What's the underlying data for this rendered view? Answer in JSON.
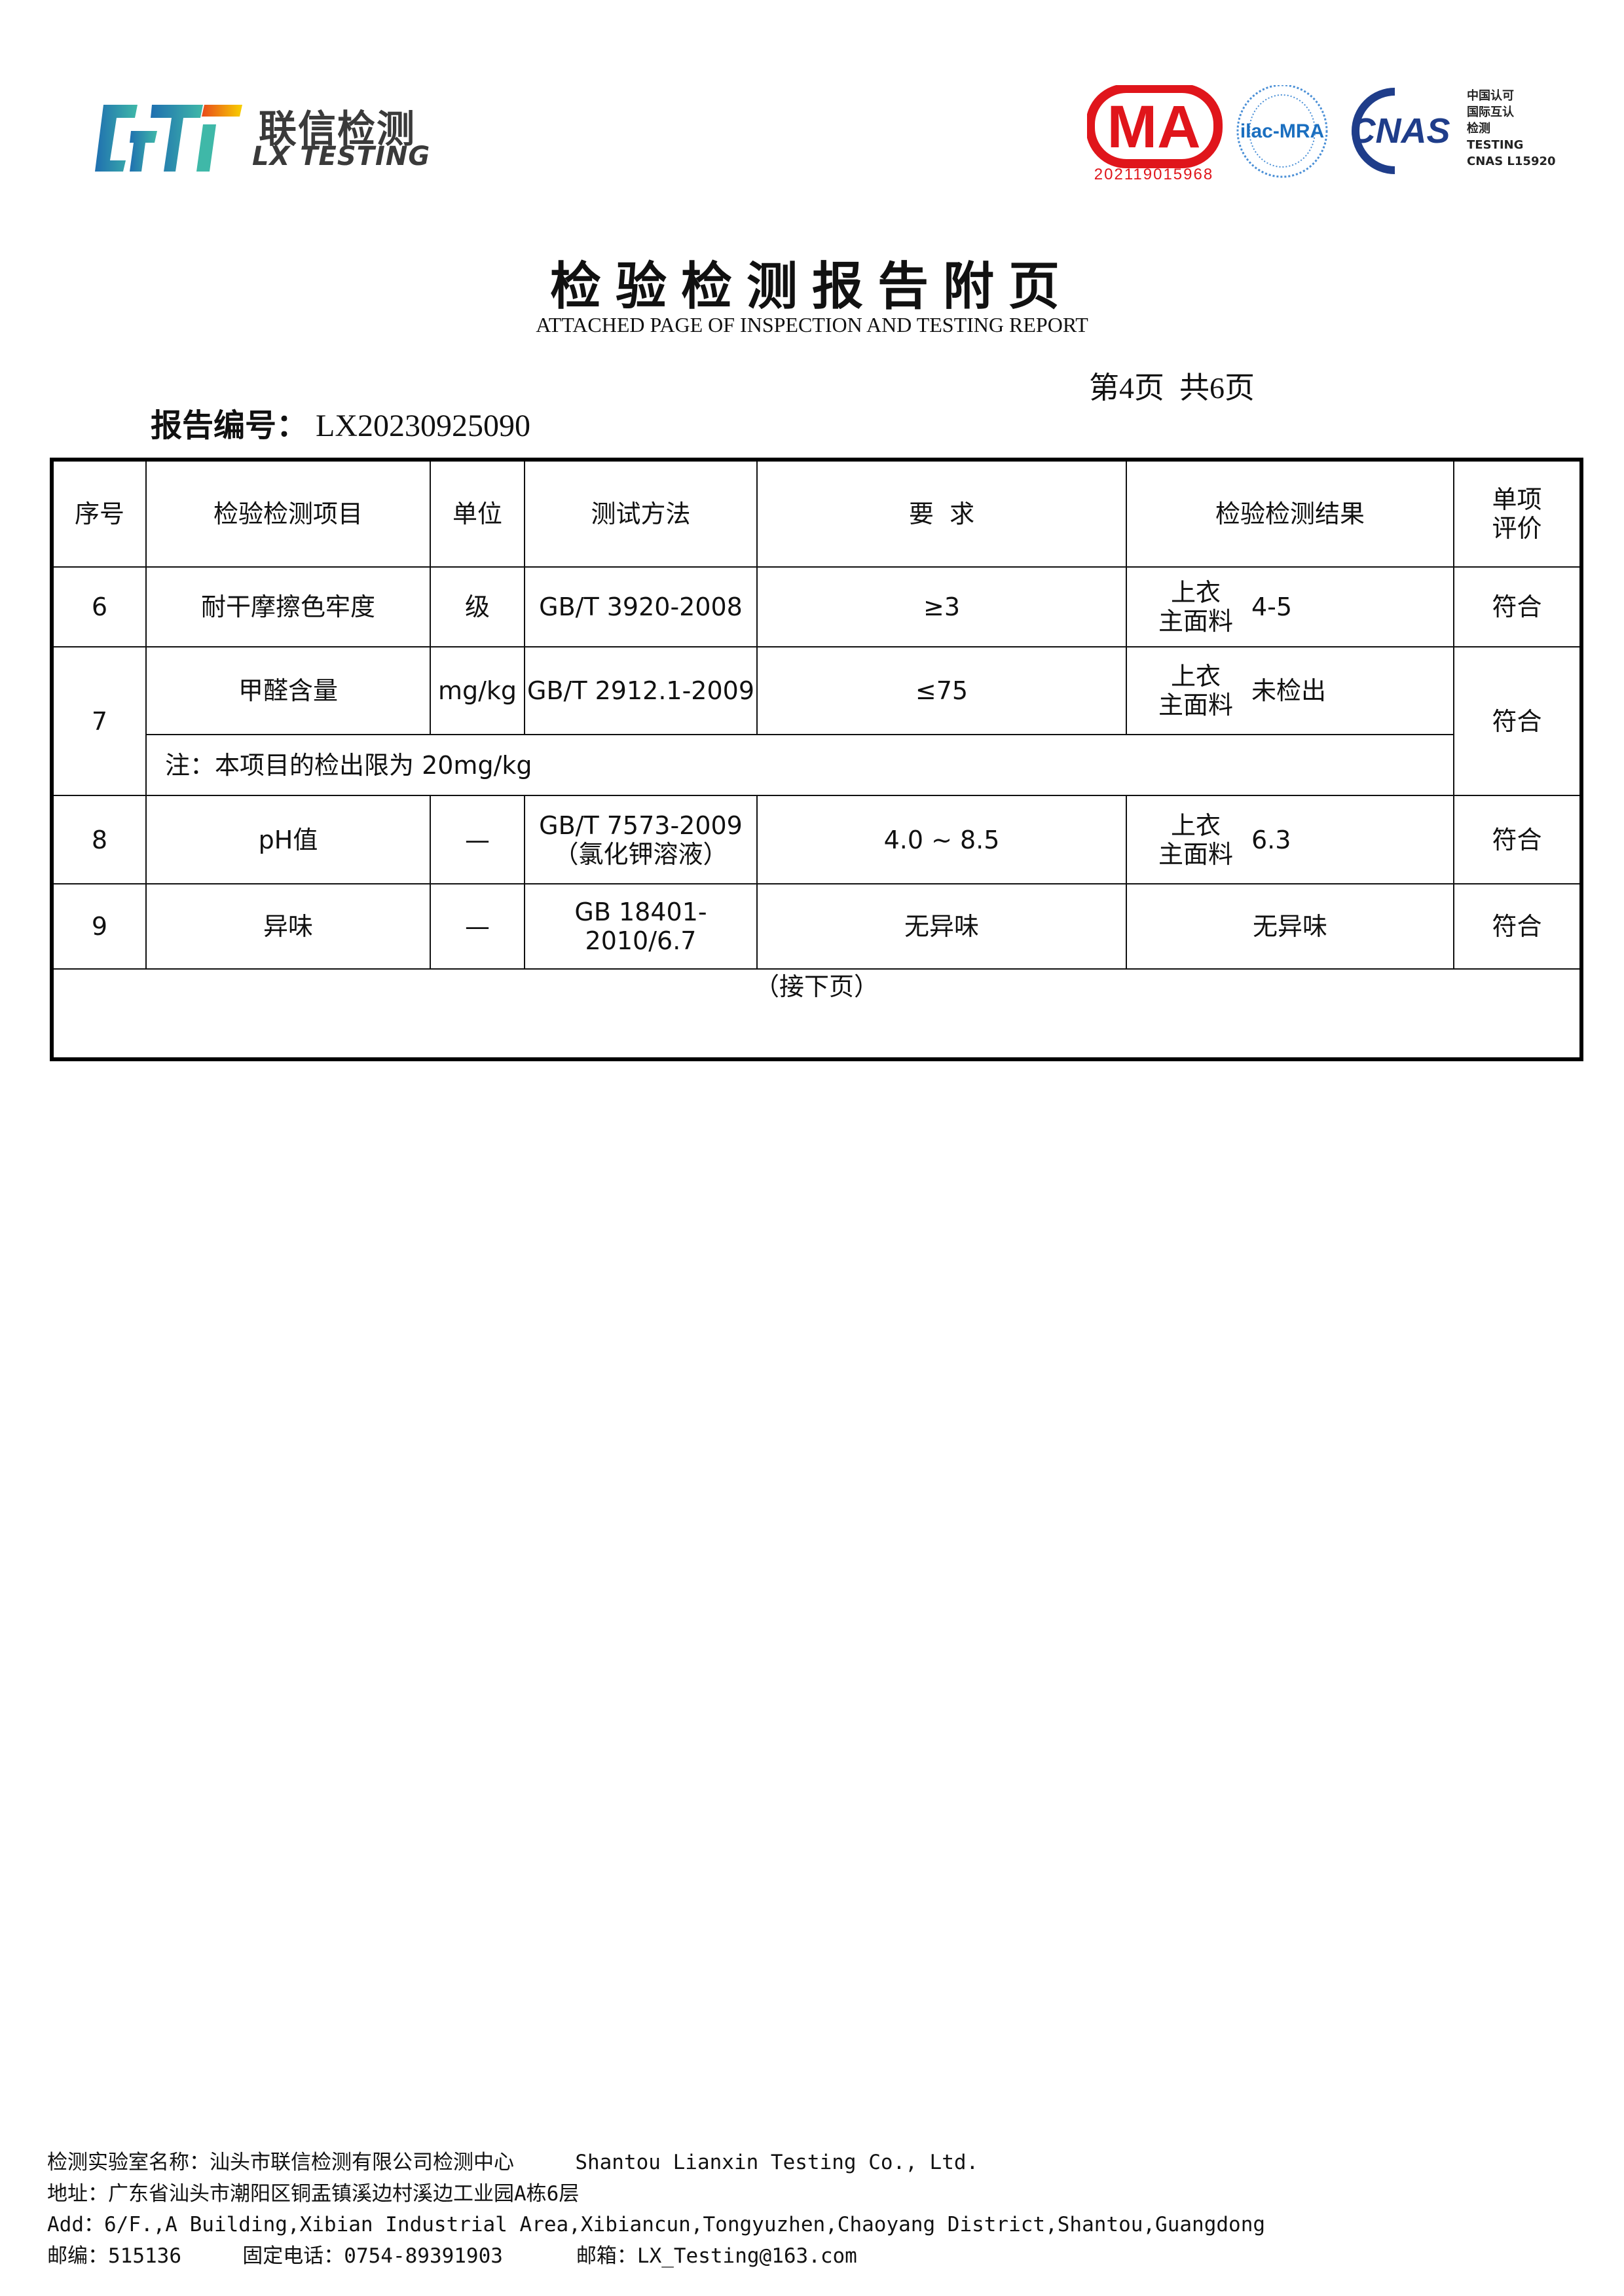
{
  "header": {
    "logo": {
      "mark": "LXT",
      "cn": "联信检测",
      "en": "LX TESTING"
    },
    "certs": {
      "ma": {
        "text": "MA",
        "number": "202119015968",
        "color": "#e0151b"
      },
      "ilac": {
        "text": "ilac-MRA",
        "color": "#1b6fc0"
      },
      "cnas": {
        "text": "CNAS",
        "color": "#1f3d8a"
      },
      "side_lines": [
        "中国认可",
        "国际互认",
        "检测",
        "TESTING",
        "CNAS L15920"
      ]
    },
    "title": "检验检测报告附页",
    "subtitle": "ATTACHED PAGE OF INSPECTION AND TESTING REPORT",
    "page_info": "第4页  共6页",
    "report_no_label": "报告编号：",
    "report_no": "LX20230925090"
  },
  "table": {
    "headers": [
      "序号",
      "检验检测项目",
      "单位",
      "测试方法",
      "要  求",
      "检验检测结果",
      "单项\n评价"
    ],
    "rows": [
      {
        "no": "6",
        "item": "耐干摩擦色牢度",
        "unit": "级",
        "method": "GB/T 3920-2008",
        "requirement": "≥3",
        "result_loc": "上衣\n主面料",
        "result": "4-5",
        "verdict": "符合"
      },
      {
        "no": "7",
        "item": "甲醛含量",
        "unit": "mg/kg",
        "method": "GB/T 2912.1-2009",
        "requirement": "≤75",
        "result_loc": "上衣\n主面料",
        "result": "未检出",
        "verdict": "符合",
        "note": "注：本项目的检出限为 20mg/kg"
      },
      {
        "no": "8",
        "item": "pH值",
        "unit": "—",
        "method": "GB/T 7573-2009\n（氯化钾溶液）",
        "requirement": "4.0 ~ 8.5",
        "result_loc": "上衣\n主面料",
        "result": "6.3",
        "verdict": "符合"
      },
      {
        "no": "9",
        "item": "异味",
        "unit": "—",
        "method": "GB 18401-2010/6.7",
        "requirement": "无异味",
        "result": "无异味",
        "verdict": "符合"
      }
    ],
    "continued": "（接下页）"
  },
  "footer": {
    "lab_name": "检测实验室名称：汕头市联信检测有限公司检测中心     Shantou Lianxin Testing Co., Ltd.",
    "address_cn": "地址：广东省汕头市潮阳区铜盂镇溪边村溪边工业园A栋6层",
    "address_en": "Add：6/F.,A Building,Xibian Industrial Area,Xibiancun,Tongyuzhen,Chaoyang District,Shantou,Guangdong",
    "contact": "邮编：515136     固定电话：0754-89391903      邮箱：LX_Testing@163.com"
  }
}
